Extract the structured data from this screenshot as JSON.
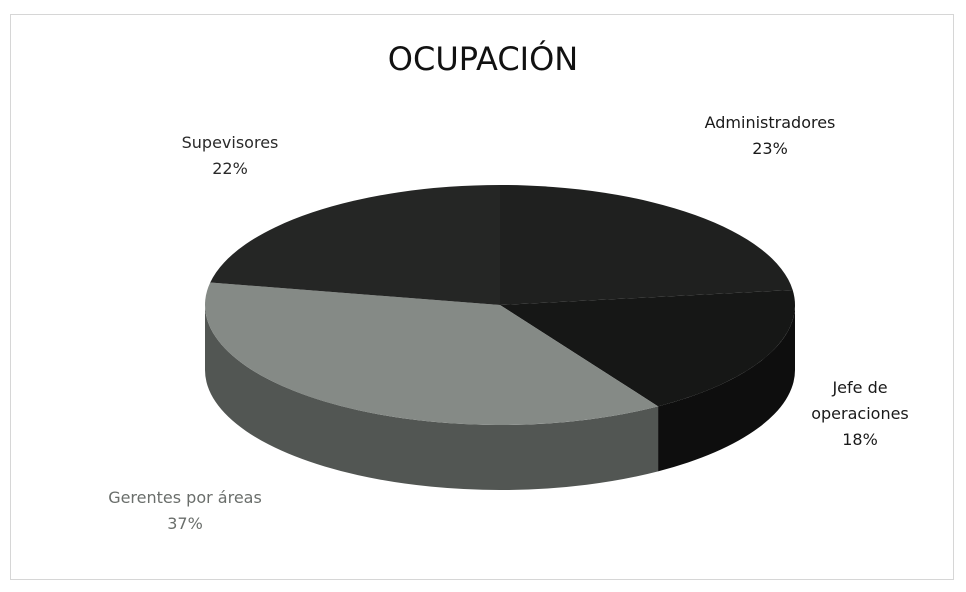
{
  "chart_data": {
    "type": "pie",
    "title": "OCUPACIÓN",
    "categories": [
      "Administradores",
      "Jefe de operaciones",
      "Gerentes por áreas",
      "Supevisores"
    ],
    "values": [
      23,
      18,
      37,
      22
    ],
    "value_labels": [
      "23%",
      "18%",
      "37%",
      "22%"
    ],
    "colors": [
      "#1f201f",
      "#161716",
      "#858a86",
      "#252625"
    ]
  }
}
